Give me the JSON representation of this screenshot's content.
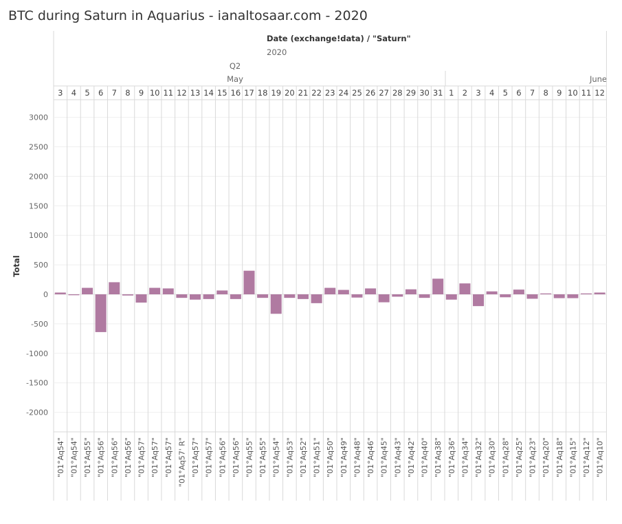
{
  "title": "BTC during Saturn in Aquarius - ianaltosaar.com - 2020",
  "header": {
    "field_caption": "Date (exchange!data) / \"Saturn\"",
    "year_label": "2020",
    "quarter_label": "Q2",
    "month_labels": [
      "May",
      "June"
    ]
  },
  "colors": {
    "bar": "#b07aa1",
    "grid": "#d9d9d9",
    "axis_text": "#666666"
  },
  "chart_data": {
    "type": "bar",
    "ylabel": "Total",
    "ylim": [
      -2300,
      3300
    ],
    "yticks": [
      3000,
      2500,
      2000,
      1500,
      1000,
      500,
      0,
      -500,
      -1000,
      -1500,
      -2000
    ],
    "grid": true,
    "months": [
      "May",
      "June"
    ],
    "days": [
      "3",
      "4",
      "5",
      "6",
      "7",
      "8",
      "9",
      "10",
      "11",
      "12",
      "13",
      "14",
      "15",
      "16",
      "17",
      "18",
      "19",
      "20",
      "21",
      "22",
      "23",
      "24",
      "25",
      "26",
      "27",
      "28",
      "29",
      "30",
      "31",
      "1",
      "2",
      "3",
      "4",
      "5",
      "6",
      "7",
      "8",
      "9",
      "10",
      "11",
      "12"
    ],
    "saturn": [
      "\"01°Aq54\"",
      "\"01°Aq54\"",
      "\"01°Aq55\"",
      "\"01°Aq56\"",
      "\"01°Aq56\"",
      "\"01°Aq56\"",
      "\"01°Aq57\"",
      "\"01°Aq57\"",
      "\"01°Aq57\"",
      "\"01°Aq57' R\"",
      "\"01°Aq57\"",
      "\"01°Aq57\"",
      "\"01°Aq56\"",
      "\"01°Aq56\"",
      "\"01°Aq55\"",
      "\"01°Aq55\"",
      "\"01°Aq54\"",
      "\"01°Aq53\"",
      "\"01°Aq52\"",
      "\"01°Aq51\"",
      "\"01°Aq50\"",
      "\"01°Aq49\"",
      "\"01°Aq48\"",
      "\"01°Aq46\"",
      "\"01°Aq45\"",
      "\"01°Aq43\"",
      "\"01°Aq42\"",
      "\"01°Aq40\"",
      "\"01°Aq38\"",
      "\"01°Aq36\"",
      "\"01°Aq34\"",
      "\"01°Aq32\"",
      "\"01°Aq30\"",
      "\"01°Aq28\"",
      "\"01°Aq25\"",
      "\"01°Aq23\"",
      "\"01°Aq20\"",
      "\"01°Aq18\"",
      "\"01°Aq15\"",
      "\"01°Aq12\"",
      "\"01°Aq10\""
    ],
    "values": [
      30,
      -15,
      110,
      -640,
      205,
      -20,
      -140,
      110,
      100,
      -60,
      -90,
      -80,
      65,
      -80,
      400,
      -60,
      -330,
      -60,
      -80,
      -150,
      110,
      75,
      -55,
      100,
      -135,
      -40,
      85,
      -60,
      265,
      -90,
      185,
      -200,
      50,
      -50,
      80,
      -75,
      15,
      -65,
      -65,
      15,
      30
    ]
  }
}
